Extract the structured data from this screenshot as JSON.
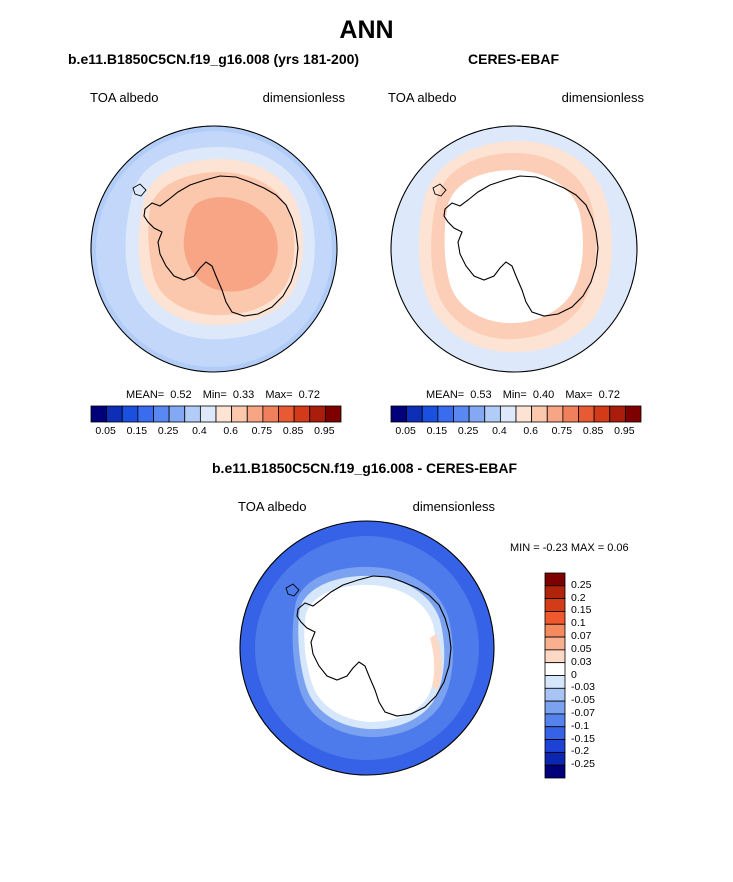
{
  "figure": {
    "title": "ANN"
  },
  "panel_model": {
    "title": "b.e11.B1850C5CN.f19_g16.008 (yrs 181-200)",
    "left_label": "TOA albedo",
    "right_label": "dimensionless",
    "stats": {
      "mean_label": "MEAN=",
      "mean": "0.52",
      "min_label": "Min=",
      "min": "0.33",
      "max_label": "Max=",
      "max": "0.72"
    }
  },
  "panel_obs": {
    "title": "CERES-EBAF",
    "left_label": "TOA albedo",
    "right_label": "dimensionless",
    "stats": {
      "mean_label": "MEAN=",
      "mean": "0.53",
      "min_label": "Min=",
      "min": "0.40",
      "max_label": "Max=",
      "max": "0.72"
    }
  },
  "panel_diff": {
    "title": "b.e11.B1850C5CN.f19_g16.008 - CERES-EBAF",
    "left_label": "TOA albedo",
    "right_label": "dimensionless",
    "minmax": {
      "min_label": "MIN =",
      "min": "-0.23",
      "max_label": "MAX =",
      "max": "0.06"
    }
  },
  "colorbar_abs": {
    "colors": [
      "#00007a",
      "#0d2fb8",
      "#1a4fe0",
      "#3a6cf0",
      "#5a88f2",
      "#84a8f4",
      "#b2ccf8",
      "#dde9fb",
      "#fde3d3",
      "#fbc7ad",
      "#f7a584",
      "#f0805c",
      "#e85a33",
      "#d33a1a",
      "#aa1d0c",
      "#7f0000"
    ],
    "tick_labels": [
      "0.05",
      "0.15",
      "0.25",
      "0.4",
      "0.6",
      "0.75",
      "0.85",
      "0.95"
    ]
  },
  "colorbar_diff": {
    "colors": [
      "#7f0000",
      "#b0240b",
      "#d43c18",
      "#ee5a2e",
      "#f58a5e",
      "#f8b08f",
      "#fcd9c4",
      "#ffffff",
      "#d6e6fb",
      "#a8c4f4",
      "#7aa2f0",
      "#5582ec",
      "#3562e6",
      "#1e42d6",
      "#0d26b2",
      "#00007a"
    ],
    "tick_labels": [
      "0.25",
      "0.2",
      "0.15",
      "0.1",
      "0.07",
      "0.05",
      "0.03",
      "0",
      "-0.03",
      "-0.05",
      "-0.07",
      "-0.1",
      "-0.15",
      "-0.2",
      "-0.25"
    ]
  }
}
